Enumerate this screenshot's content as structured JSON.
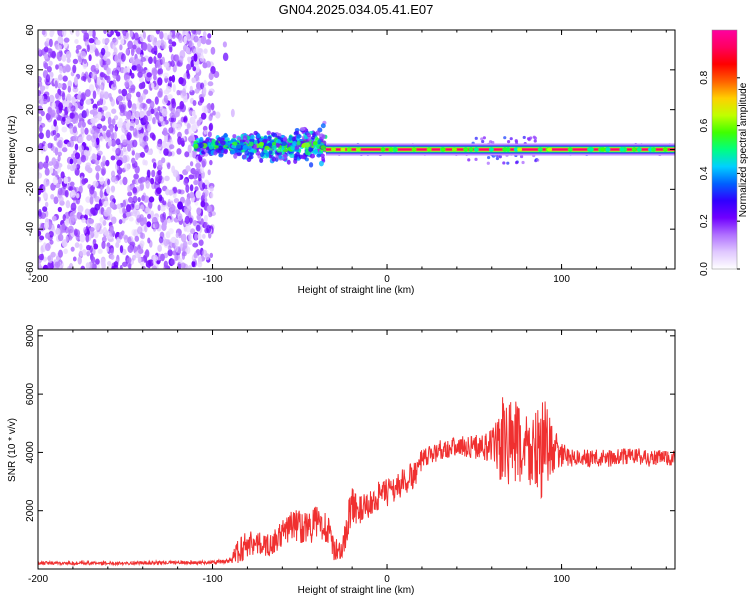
{
  "title": "GN04.2025.034.05.41.E07",
  "chart_data": [
    {
      "type": "heatmap",
      "xlabel": "Height of straight line (km)",
      "ylabel": "Frequency (Hz)",
      "xlim": [
        -200,
        165
      ],
      "ylim": [
        -60,
        60
      ],
      "xticks": [
        -200,
        -100,
        0,
        100
      ],
      "yticks": [
        -60,
        -40,
        -20,
        0,
        20,
        40,
        60
      ],
      "colorbar": {
        "label": "Normalized spectral amplitude",
        "range": [
          0,
          1
        ],
        "ticks": [
          "0.0",
          "0.2",
          "0.4",
          "0.6",
          "0.8"
        ],
        "colors": [
          "#ffffff",
          "#e0c8ff",
          "#b070ff",
          "#7000ff",
          "#3000ff",
          "#0060ff",
          "#00d0ff",
          "#00ff80",
          "#40ff00",
          "#c0ff00",
          "#ffd000",
          "#ff6000",
          "#ff0000",
          "#ff0060",
          "#ff00a0"
        ]
      },
      "features": [
        {
          "label": "broadband noise",
          "x_range": [
            -200,
            -100
          ],
          "freq_range": [
            -60,
            60
          ],
          "amplitude": 0.12
        },
        {
          "label": "emerging signal",
          "x_range": [
            -110,
            -35
          ],
          "freq_range": [
            -10,
            15
          ],
          "amplitude": 0.45
        },
        {
          "label": "stable carrier",
          "x_range": [
            -35,
            165
          ],
          "freq_range": [
            -1,
            1
          ],
          "amplitude": 0.95
        }
      ]
    },
    {
      "type": "line",
      "xlabel": "Height of straight line (km)",
      "ylabel": "SNR (10 * v/v)",
      "xlim": [
        -200,
        165
      ],
      "ylim": [
        0,
        8200
      ],
      "xticks": [
        -200,
        -100,
        0,
        100
      ],
      "yticks": [
        2000,
        4000,
        6000,
        8000
      ],
      "series": [
        {
          "color": "#f03030",
          "x": [
            -200,
            -180,
            -160,
            -140,
            -120,
            -100,
            -95,
            -90,
            -85,
            -80,
            -75,
            -70,
            -65,
            -60,
            -55,
            -50,
            -45,
            -40,
            -35,
            -30,
            -25,
            -22,
            -20,
            -15,
            -10,
            -5,
            0,
            5,
            10,
            15,
            20,
            25,
            30,
            40,
            50,
            60,
            65,
            70,
            75,
            80,
            85,
            90,
            95,
            100,
            110,
            120,
            130,
            140,
            150,
            160,
            165
          ],
          "y": [
            200,
            200,
            200,
            210,
            220,
            230,
            250,
            300,
            600,
            900,
            900,
            800,
            900,
            1200,
            1500,
            1500,
            1400,
            1600,
            1500,
            600,
            800,
            1800,
            2200,
            2000,
            2200,
            2500,
            2600,
            2800,
            3000,
            3200,
            3700,
            3900,
            4100,
            4200,
            4200,
            4200,
            4300,
            4400,
            4200,
            4100,
            4000,
            4100,
            4100,
            3900,
            3800,
            3800,
            3800,
            3900,
            3800,
            3800,
            3800
          ],
          "noise": [
            60,
            60,
            60,
            60,
            60,
            60,
            80,
            100,
            500,
            500,
            400,
            400,
            400,
            500,
            500,
            600,
            600,
            600,
            600,
            400,
            400,
            600,
            600,
            500,
            500,
            500,
            500,
            500,
            500,
            500,
            400,
            350,
            350,
            350,
            400,
            600,
            1500,
            1800,
            1500,
            1400,
            1500,
            1800,
            900,
            400,
            300,
            300,
            300,
            300,
            300,
            300,
            300
          ]
        }
      ]
    }
  ]
}
